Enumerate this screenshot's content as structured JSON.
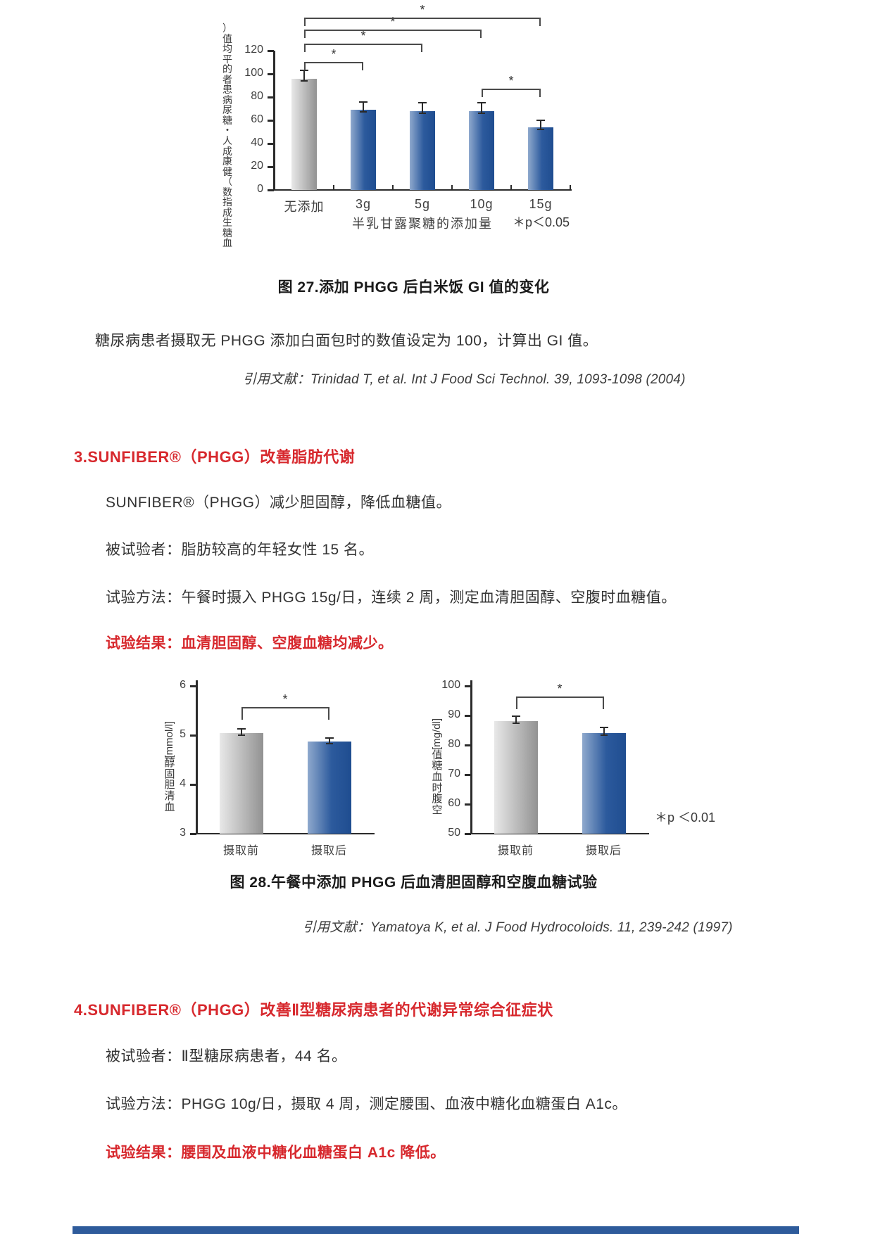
{
  "page": {
    "fig27_caption": "图 27.添加 PHGG 后白米饭 GI 值的变化",
    "gi_note": "糖尿病患者摄取无 PHGG 添加白面包时的数值设定为 100，计算出 GI 值。",
    "cite27": "引用文献：Trinidad T, et al. Int J Food Sci Technol. 39, 1093-1098 (2004)",
    "section3_heading": "3.SUNFIBER®（PHGG）改善脂肪代谢",
    "s3_summary": "SUNFIBER®（PHGG）减少胆固醇，降低血糖值。",
    "s3_subjects": "被试验者：脂肪较高的年轻女性 15 名。",
    "s3_method": "试验方法：午餐时摄入 PHGG 15g/日，连续 2 周，测定血清胆固醇、空腹时血糖值。",
    "s3_result": "试验结果：血清胆固醇、空腹血糖均减少。",
    "fig28_caption": "图 28.午餐中添加 PHGG 后血清胆固醇和空腹血糖试验",
    "cite28": "引用文献：Yamatoya K, et al. J Food Hydrocoloids. 11, 239-242 (1997)",
    "section4_heading": "4.SUNFIBER®（PHGG）改善Ⅱ型糖尿病患者的代谢异常综合征症状",
    "s4_subjects": "被试验者：Ⅱ型糖尿病患者，44 名。",
    "s4_method": "试验方法：PHGG 10g/日，摄取 4 周，测定腰围、血液中糖化血糖蛋白 A1c。",
    "s4_result": "试验结果：腰围及血液中糖化血糖蛋白 A1c 降低。"
  },
  "colors": {
    "accent_red": "#d7282d",
    "bar_blue": "#1f4d90",
    "bar_gray": "#a9a9a9",
    "next_table_strip_blue": "#2e5b9b"
  },
  "chart_data": [
    {
      "type": "bar",
      "title": "图 27.添加 PHGG 后白米饭 GI 值的变化",
      "ylabel": "血糖生成指数（健康成人・糖尿病患者的平均值）",
      "xlabel": "半乳甘露聚糖的添加量",
      "categories": [
        "无添加",
        "3g",
        "5g",
        "10g",
        "15g"
      ],
      "values": [
        96,
        69,
        68,
        68,
        54
      ],
      "errors": [
        7,
        7,
        7,
        7,
        6
      ],
      "bar_styles": [
        "gray",
        "blue",
        "blue",
        "blue",
        "blue"
      ],
      "ylim": [
        0,
        120
      ],
      "yticks": [
        0,
        20,
        40,
        60,
        80,
        100,
        120
      ],
      "grid": false,
      "legend": null,
      "significance": [
        {
          "from": 0,
          "to": 1,
          "label": "*",
          "top": 70
        },
        {
          "from": 0,
          "to": 2,
          "label": "*",
          "top": 44
        },
        {
          "from": 0,
          "to": 3,
          "label": "*",
          "top": 24
        },
        {
          "from": 0,
          "to": 4,
          "label": "*",
          "top": 7
        },
        {
          "from": 3,
          "to": 4,
          "label": "*",
          "top": 108
        }
      ],
      "note": "＊p＜0.05"
    },
    {
      "type": "bar",
      "title": "图 28.午餐中添加 PHGG 后血清胆固醇和空腹血糖试验（左：血清胆固醇）",
      "ylabel": "血清胆固醇 [mmol/l]",
      "xlabel": "",
      "categories": [
        "摄取前",
        "摄取后"
      ],
      "values": [
        5.05,
        4.87
      ],
      "errors": [
        0.08,
        0.07
      ],
      "bar_styles": [
        "gray",
        "blue"
      ],
      "ylim": [
        3,
        6
      ],
      "yticks": [
        3,
        4,
        5,
        6
      ],
      "grid": false,
      "legend": null,
      "significance": [
        {
          "from": 0,
          "to": 1,
          "label": "*",
          "top": 45
        }
      ],
      "note": ""
    },
    {
      "type": "bar",
      "title": "图 28.午餐中添加 PHGG 后血清胆固醇和空腹血糖试验（右：空腹血糖）",
      "ylabel": "空腹时血糖值 [mg/dl]",
      "xlabel": "",
      "categories": [
        "摄取前",
        "摄取后"
      ],
      "values": [
        88,
        84
      ],
      "errors": [
        1.8,
        2
      ],
      "bar_styles": [
        "gray",
        "blue"
      ],
      "ylim": [
        50,
        100
      ],
      "yticks": [
        50,
        60,
        70,
        80,
        90,
        100
      ],
      "grid": false,
      "legend": null,
      "significance": [
        {
          "from": 0,
          "to": 1,
          "label": "*",
          "top": 30
        }
      ],
      "note": "＊p ＜0.01"
    }
  ]
}
